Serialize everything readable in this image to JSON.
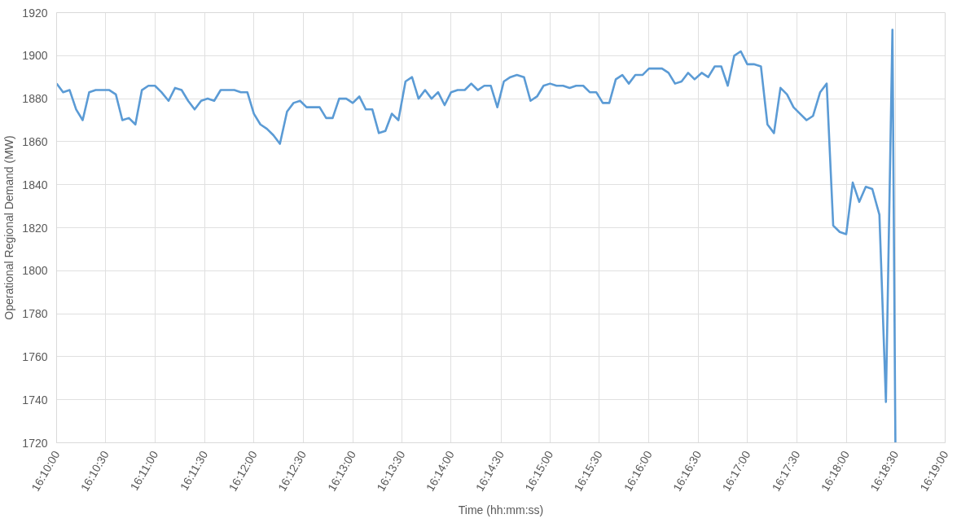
{
  "chart_data": {
    "type": "line",
    "xlabel": "Time (hh:mm:ss)",
    "ylabel": "Operational Regional Demand (MW)",
    "xlim": [
      16.1667,
      16.3167
    ],
    "ylim": [
      1720,
      1920
    ],
    "xticks": [
      {
        "value": 16.1667,
        "label": "16:10:00"
      },
      {
        "value": 16.175,
        "label": "16:10:30"
      },
      {
        "value": 16.1833,
        "label": "16:11:00"
      },
      {
        "value": 16.1917,
        "label": "16:11:30"
      },
      {
        "value": 16.2,
        "label": "16:12:00"
      },
      {
        "value": 16.2083,
        "label": "16:12:30"
      },
      {
        "value": 16.2167,
        "label": "16:13:00"
      },
      {
        "value": 16.225,
        "label": "16:13:30"
      },
      {
        "value": 16.2333,
        "label": "16:14:00"
      },
      {
        "value": 16.2417,
        "label": "16:14:30"
      },
      {
        "value": 16.25,
        "label": "16:15:00"
      },
      {
        "value": 16.2583,
        "label": "16:15:30"
      },
      {
        "value": 16.2667,
        "label": "16:16:00"
      },
      {
        "value": 16.275,
        "label": "16:16:30"
      },
      {
        "value": 16.2833,
        "label": "16:17:00"
      },
      {
        "value": 16.2917,
        "label": "16:17:30"
      },
      {
        "value": 16.3,
        "label": "16:18:00"
      },
      {
        "value": 16.3083,
        "label": "16:18:30"
      },
      {
        "value": 16.3167,
        "label": "16:19:00"
      }
    ],
    "yticks": [
      1720,
      1740,
      1760,
      1780,
      1800,
      1820,
      1840,
      1860,
      1880,
      1900,
      1920
    ],
    "grid": true,
    "marker": "none",
    "line_style": "solid",
    "series": [
      {
        "color": "#5b9bd5",
        "x": [
          16.1667,
          16.1678,
          16.1689,
          16.17,
          16.1711,
          16.1722,
          16.1733,
          16.1744,
          16.1756,
          16.1767,
          16.1778,
          16.1789,
          16.18,
          16.1811,
          16.1822,
          16.1833,
          16.1844,
          16.1856,
          16.1867,
          16.1878,
          16.1889,
          16.19,
          16.1911,
          16.1922,
          16.1933,
          16.1944,
          16.1956,
          16.1967,
          16.1978,
          16.1989,
          16.2,
          16.2011,
          16.2022,
          16.2033,
          16.2044,
          16.2056,
          16.2067,
          16.2078,
          16.2089,
          16.21,
          16.2111,
          16.2122,
          16.2133,
          16.2144,
          16.2156,
          16.2167,
          16.2178,
          16.2189,
          16.22,
          16.2211,
          16.2222,
          16.2233,
          16.2244,
          16.2256,
          16.2267,
          16.2278,
          16.2289,
          16.23,
          16.2311,
          16.2322,
          16.2333,
          16.2344,
          16.2356,
          16.2367,
          16.2378,
          16.2389,
          16.24,
          16.2411,
          16.2422,
          16.2433,
          16.2444,
          16.2456,
          16.2467,
          16.2478,
          16.2489,
          16.25,
          16.2511,
          16.2522,
          16.2533,
          16.2544,
          16.2556,
          16.2567,
          16.2578,
          16.2589,
          16.26,
          16.2611,
          16.2622,
          16.2633,
          16.2644,
          16.2656,
          16.2667,
          16.2678,
          16.2689,
          16.27,
          16.2711,
          16.2722,
          16.2733,
          16.2744,
          16.2756,
          16.2767,
          16.2778,
          16.2789,
          16.28,
          16.2811,
          16.2822,
          16.2833,
          16.2844,
          16.2856,
          16.2867,
          16.2878,
          16.2889,
          16.29,
          16.2911,
          16.2922,
          16.2933,
          16.2944,
          16.2956,
          16.2967,
          16.2978,
          16.2989,
          16.3,
          16.3011,
          16.3022,
          16.3033,
          16.3044,
          16.3056,
          16.3067,
          16.3078,
          16.3083
        ],
        "values": [
          1887,
          1883,
          1884,
          1875,
          1870,
          1883,
          1884,
          1884,
          1884,
          1882,
          1870,
          1871,
          1868,
          1884,
          1886,
          1886,
          1883,
          1879,
          1885,
          1884,
          1879,
          1875,
          1879,
          1880,
          1879,
          1884,
          1884,
          1884,
          1883,
          1883,
          1873,
          1868,
          1866,
          1863,
          1859,
          1874,
          1878,
          1879,
          1876,
          1876,
          1876,
          1871,
          1871,
          1880,
          1880,
          1878,
          1881,
          1875,
          1875,
          1864,
          1865,
          1873,
          1870,
          1888,
          1890,
          1880,
          1884,
          1880,
          1883,
          1877,
          1883,
          1884,
          1884,
          1887,
          1884,
          1886,
          1886,
          1876,
          1888,
          1890,
          1891,
          1890,
          1879,
          1881,
          1886,
          1887,
          1886,
          1886,
          1885,
          1886,
          1886,
          1883,
          1883,
          1878,
          1878,
          1889,
          1891,
          1887,
          1891,
          1891,
          1894,
          1894,
          1894,
          1892,
          1887,
          1888,
          1892,
          1889,
          1892,
          1890,
          1895,
          1895,
          1886,
          1900,
          1902,
          1896,
          1896,
          1895,
          1868,
          1864,
          1885,
          1882,
          1876,
          1873,
          1870,
          1872,
          1883,
          1887,
          1821,
          1818,
          1817,
          1841,
          1832,
          1839,
          1838,
          1826,
          1739,
          1912,
          1720
        ]
      }
    ]
  }
}
